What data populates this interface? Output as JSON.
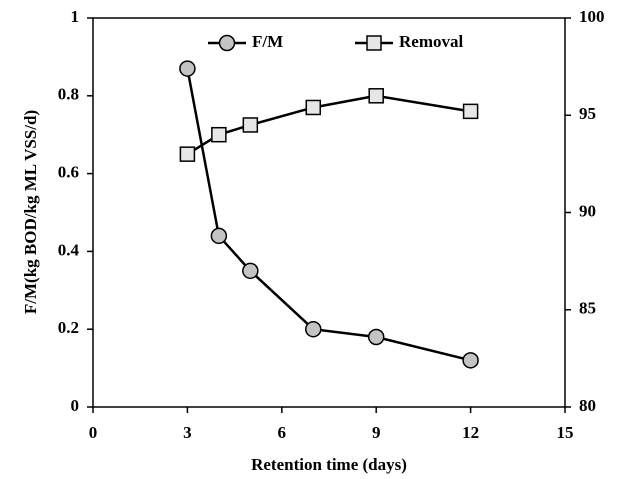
{
  "chart_data": {
    "type": "line",
    "xlabel": "Retention time (days)",
    "ylabel": "F/M(kg BOD/kg ML VSS/d)",
    "x": [
      3,
      4,
      5,
      7,
      9,
      12
    ],
    "series": [
      {
        "name": "F/M",
        "color": "#c4c4c4",
        "marker": "circle",
        "values": [
          0.87,
          0.44,
          0.35,
          0.2,
          0.18,
          0.12
        ]
      },
      {
        "name": "Removal",
        "color": "#e6e6e6",
        "marker": "square",
        "axis": "y2",
        "values": [
          93.0,
          94.0,
          94.5,
          95.4,
          96.0,
          95.2
        ]
      }
    ],
    "xlim": [
      0,
      15
    ],
    "xticks": [
      0,
      3,
      6,
      9,
      12,
      15
    ],
    "ylim": [
      0,
      1
    ],
    "yticks": [
      0,
      0.2,
      0.4,
      0.6,
      0.8,
      1
    ],
    "y2lim": [
      80,
      100
    ],
    "y2ticks": [
      80,
      85,
      90,
      95,
      100
    ],
    "grid": false,
    "legend": "top"
  }
}
